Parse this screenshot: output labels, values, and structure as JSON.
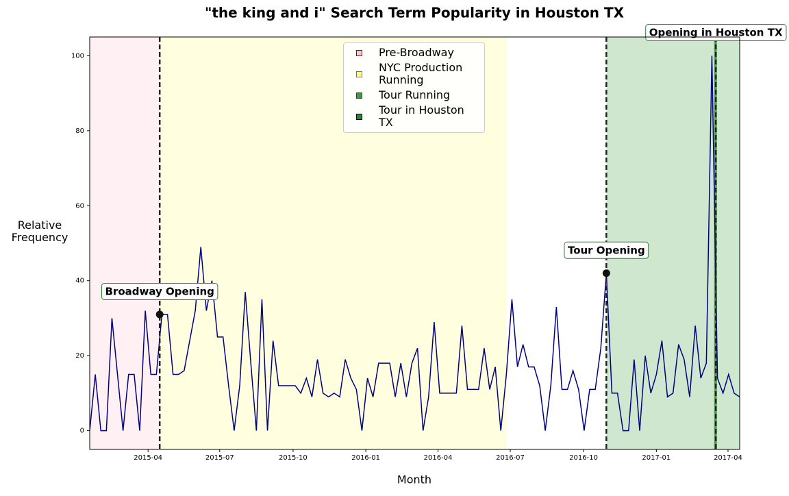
{
  "chart_data": {
    "type": "line",
    "title": "\"the king and i\" Search Term Popularity in Houston TX",
    "x_label": "Month",
    "y_label": "Relative Frequency",
    "xlim": [
      0,
      117
    ],
    "ylim": [
      -5,
      105
    ],
    "xticks": [
      {
        "value": 10.5,
        "label": "2015-04"
      },
      {
        "value": 23.4,
        "label": "2015-07"
      },
      {
        "value": 36.6,
        "label": "2015-10"
      },
      {
        "value": 49.7,
        "label": "2016-01"
      },
      {
        "value": 62.7,
        "label": "2016-04"
      },
      {
        "value": 75.7,
        "label": "2016-07"
      },
      {
        "value": 88.9,
        "label": "2016-10"
      },
      {
        "value": 102.0,
        "label": "2017-01"
      },
      {
        "value": 114.9,
        "label": "2017-04"
      }
    ],
    "yticks": [
      0,
      20,
      40,
      60,
      80,
      100
    ],
    "series": [
      {
        "name": "the king and i",
        "color": "#000080",
        "x": [
          0,
          1,
          2,
          3,
          4,
          5,
          6,
          7,
          8,
          9,
          10,
          11,
          12,
          13,
          14,
          15,
          16,
          17,
          18,
          19,
          20,
          21,
          22,
          23,
          24,
          25,
          26,
          27,
          28,
          29,
          30,
          31,
          32,
          33,
          34,
          35,
          36,
          37,
          38,
          39,
          40,
          41,
          42,
          43,
          44,
          45,
          46,
          47,
          48,
          49,
          50,
          51,
          52,
          53,
          54,
          55,
          56,
          57,
          58,
          59,
          60,
          61,
          62,
          63,
          64,
          65,
          66,
          67,
          68,
          69,
          70,
          71,
          72,
          73,
          74,
          75,
          76,
          77,
          78,
          79,
          80,
          81,
          82,
          83,
          84,
          85,
          86,
          87,
          88,
          89,
          90,
          91,
          92,
          93,
          94,
          95,
          96,
          97,
          98,
          99,
          100,
          101,
          102,
          103,
          104,
          105,
          106,
          107,
          108,
          109,
          110,
          111,
          112,
          113,
          114,
          115,
          116,
          117
        ],
        "values": [
          0,
          15,
          0,
          0,
          30,
          15,
          0,
          15,
          15,
          0,
          32,
          15,
          15,
          31,
          31,
          15,
          15,
          16,
          24,
          32,
          49,
          32,
          40,
          25,
          25,
          12,
          0,
          12,
          37,
          18,
          0,
          35,
          0,
          24,
          12,
          12,
          12,
          12,
          10,
          14,
          9,
          19,
          10,
          9,
          10,
          9,
          19,
          14,
          11,
          0,
          14,
          9,
          18,
          18,
          18,
          9,
          18,
          9,
          18,
          22,
          0,
          9,
          29,
          10,
          10,
          10,
          10,
          28,
          11,
          11,
          11,
          22,
          11,
          17,
          0,
          15,
          35,
          17,
          23,
          17,
          17,
          12,
          0,
          12,
          33,
          11,
          11,
          16,
          11,
          0,
          11,
          11,
          22,
          42,
          10,
          10,
          0,
          0,
          19,
          0,
          20,
          10,
          15,
          24,
          9,
          10,
          23,
          19,
          9,
          28,
          14,
          18,
          100,
          14,
          10,
          15,
          10,
          9
        ]
      }
    ],
    "periods": [
      {
        "name": "Pre-Broadway",
        "color": "#ffb6c1",
        "alpha": 0.2,
        "start": 0,
        "end": 12.6
      },
      {
        "name": "NYC Production Running",
        "color": "#ffff00",
        "alpha": 0.12,
        "start": 12.6,
        "end": 75.0
      },
      {
        "name": "Tour Running",
        "color": "#008000",
        "alpha": 0.19,
        "start": 93.0,
        "end": 117
      },
      {
        "name": "Tour in Houston TX",
        "color": "#228b22",
        "alpha": 0.75,
        "start": 112.4,
        "end": 112.9
      }
    ],
    "events": [
      {
        "label": "Broadway Opening",
        "x": 12.6,
        "y": 31
      },
      {
        "label": "Tour Opening",
        "x": 93.0,
        "y": 42
      },
      {
        "label": "Opening in Houston TX",
        "x": 112.7
      }
    ]
  }
}
